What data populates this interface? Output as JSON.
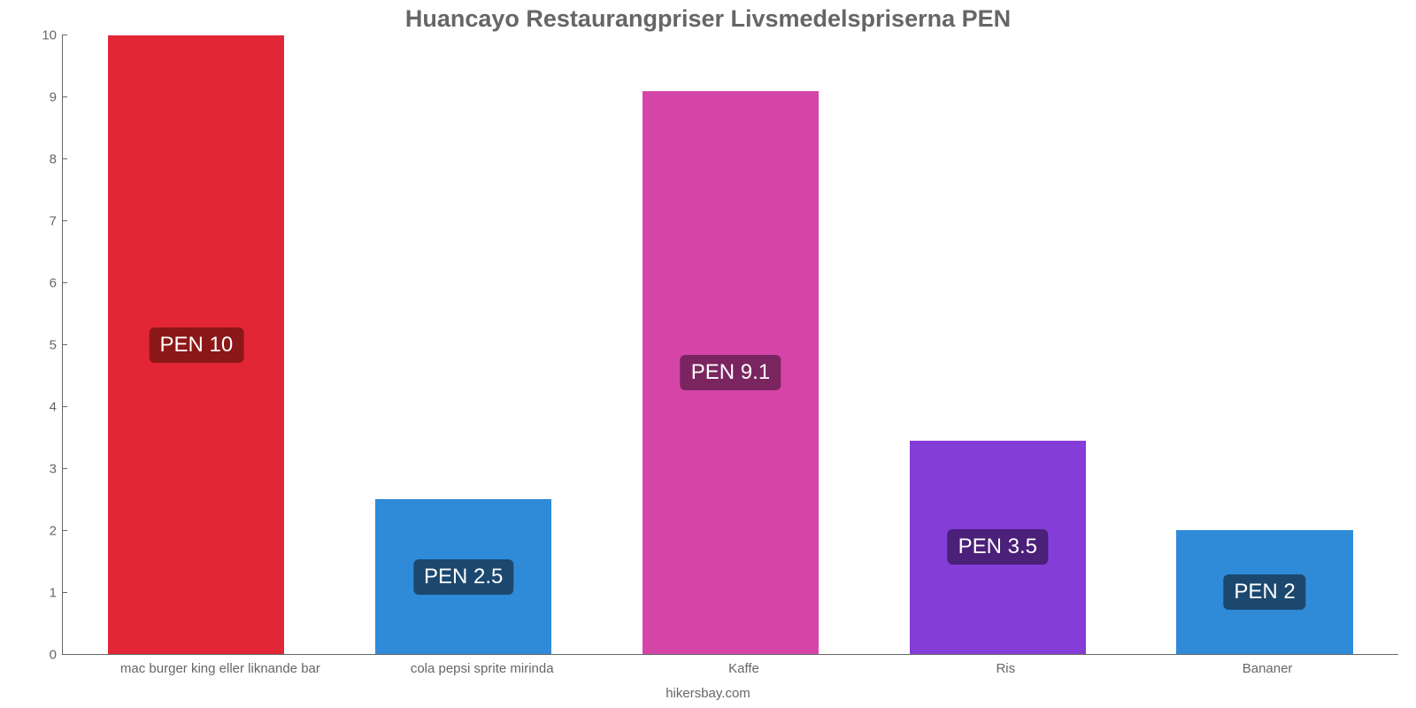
{
  "chart": {
    "type": "bar",
    "title": "Huancayo Restaurangpriser Livsmedelspriserna PEN",
    "title_fontsize": 27,
    "title_color": "#666666",
    "background_color": "#ffffff",
    "axis_color": "#666666",
    "tick_label_fontsize": 15,
    "tick_label_color": "#666666",
    "x_label_fontsize": 15,
    "x_label_color": "#666666",
    "ylim": [
      0,
      10
    ],
    "yticks": [
      0,
      1,
      2,
      3,
      4,
      5,
      6,
      7,
      8,
      9,
      10
    ],
    "bar_width_pct": 66,
    "value_label_fontsize": 24,
    "value_label_text_color": "#ffffff",
    "credit": "hikersbay.com",
    "bars": [
      {
        "category": "mac burger king eller liknande bar",
        "value": 10,
        "label": "PEN 10",
        "bar_color": "#e32636",
        "label_bg": "#8c1717"
      },
      {
        "category": "cola pepsi sprite mirinda",
        "value": 2.5,
        "label": "PEN 2.5",
        "bar_color": "#2f8ad8",
        "label_bg": "#1c486f"
      },
      {
        "category": "Kaffe",
        "value": 9.1,
        "label": "PEN 9.1",
        "bar_color": "#d545a8",
        "label_bg": "#7a2560"
      },
      {
        "category": "Ris",
        "value": 3.45,
        "label": "PEN 3.5",
        "bar_color": "#843dd6",
        "label_bg": "#4a2079"
      },
      {
        "category": "Bananer",
        "value": 2.0,
        "label": "PEN 2",
        "bar_color": "#2f8ad8",
        "label_bg": "#1c486f"
      }
    ]
  }
}
